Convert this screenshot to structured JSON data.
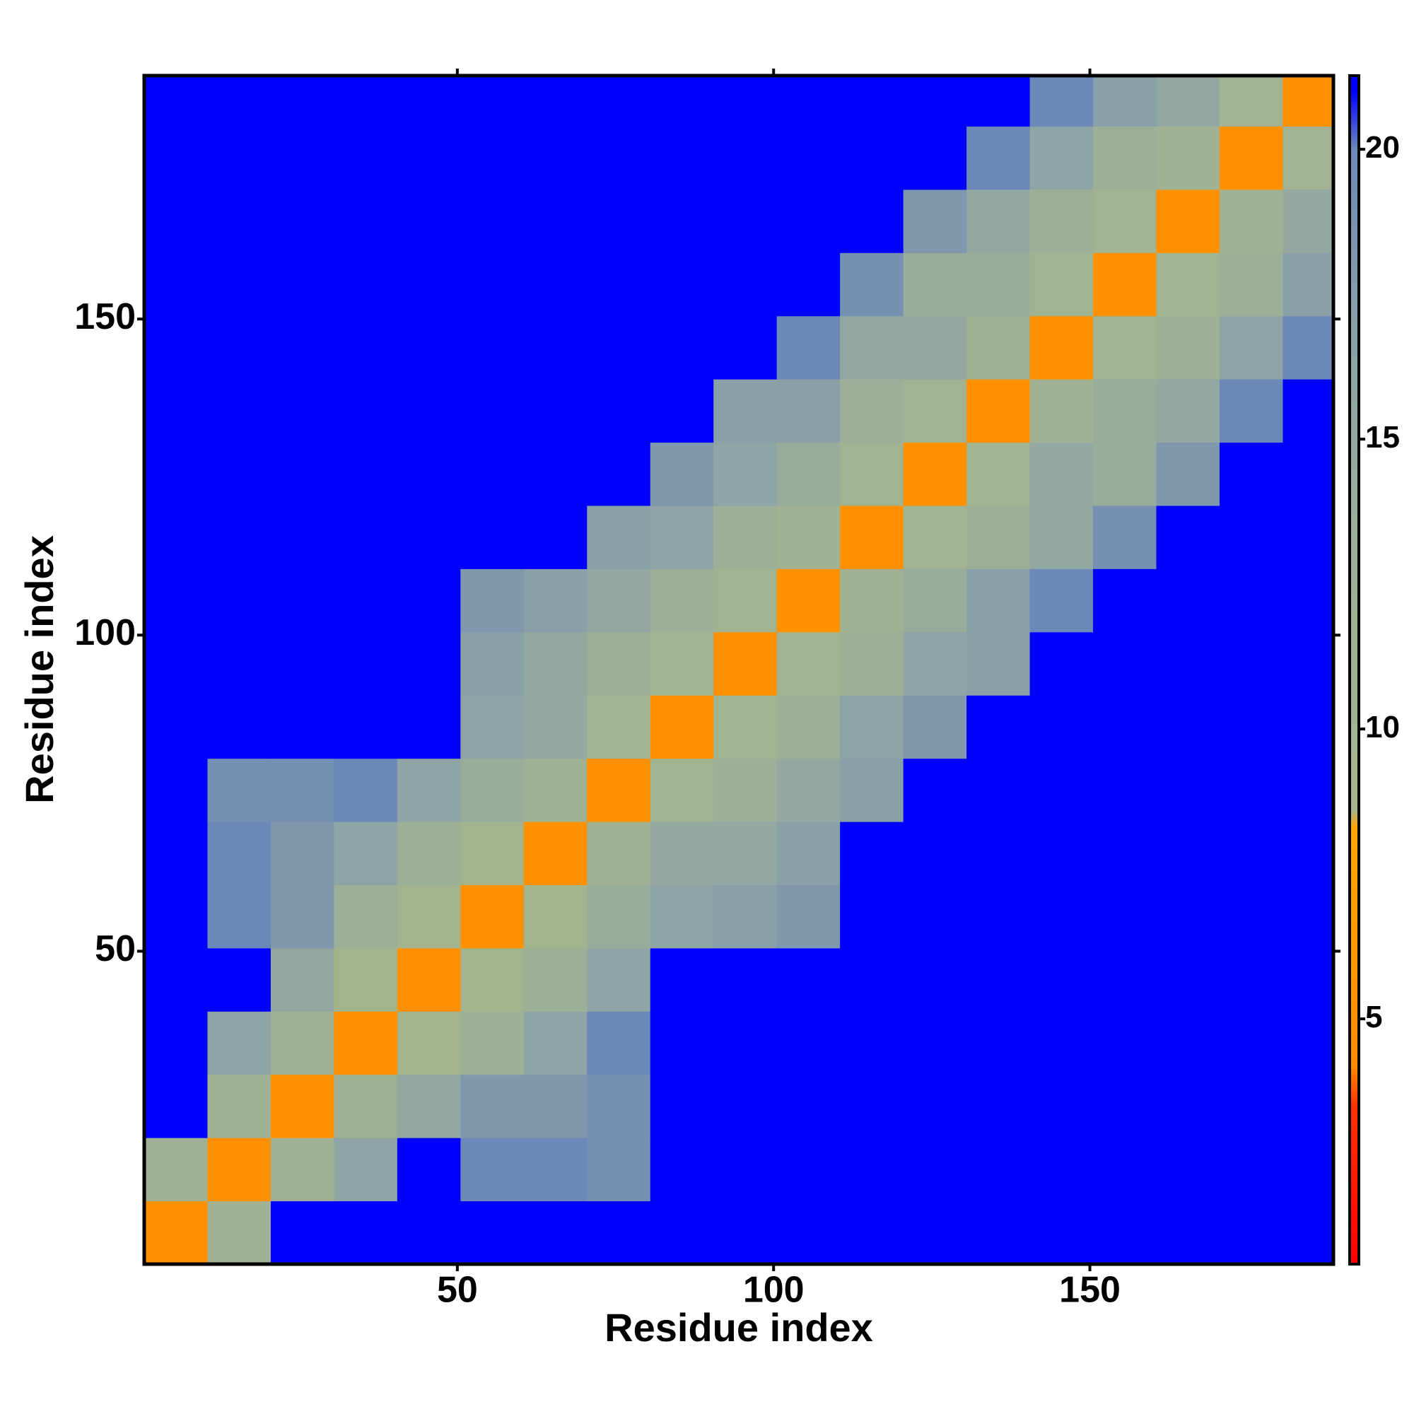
{
  "chart_data": {
    "type": "heatmap",
    "xlabel": "Residue index",
    "ylabel": "Residue index",
    "x_bins": [
      0.5,
      10.5,
      20.5,
      30.5,
      40.5,
      50.5,
      60.5,
      70.5,
      80.5,
      90.5,
      100.5,
      110.5,
      120.5,
      130.5,
      140.5,
      150.5,
      160.5,
      170.5,
      180.5,
      188.5
    ],
    "y_bins": [
      0.5,
      10.5,
      20.5,
      30.5,
      40.5,
      50.5,
      60.5,
      70.5,
      80.5,
      90.5,
      100.5,
      110.5,
      120.5,
      130.5,
      140.5,
      150.5,
      160.5,
      170.5,
      180.5,
      188.5
    ],
    "values": [
      [
        5,
        11,
        21,
        21,
        21,
        21,
        21,
        21,
        21,
        21,
        21,
        21,
        21,
        21,
        21,
        21,
        21,
        21,
        21
      ],
      [
        11,
        5,
        11,
        16,
        21,
        20,
        20,
        19,
        21,
        21,
        21,
        21,
        21,
        21,
        21,
        21,
        21,
        21,
        21
      ],
      [
        21,
        11,
        5,
        12,
        15,
        18,
        18,
        19,
        21,
        21,
        21,
        21,
        21,
        21,
        21,
        21,
        21,
        21,
        21
      ],
      [
        21,
        16,
        12,
        5,
        9,
        13,
        16,
        20,
        21,
        21,
        21,
        21,
        21,
        21,
        21,
        21,
        21,
        21,
        21
      ],
      [
        21,
        21,
        15,
        9,
        5,
        9,
        13,
        16,
        21,
        21,
        21,
        21,
        21,
        21,
        21,
        21,
        21,
        21,
        21
      ],
      [
        21,
        20,
        18,
        13,
        9,
        5,
        9,
        14,
        16,
        17,
        18,
        21,
        21,
        21,
        21,
        21,
        21,
        21,
        21
      ],
      [
        21,
        20,
        18,
        16,
        13,
        9,
        5,
        11,
        15,
        15,
        17,
        21,
        21,
        21,
        21,
        21,
        21,
        21,
        21
      ],
      [
        21,
        19,
        19,
        20,
        16,
        14,
        11,
        5,
        10,
        13,
        15,
        17,
        21,
        21,
        21,
        21,
        21,
        21,
        21
      ],
      [
        21,
        21,
        21,
        21,
        21,
        16,
        15,
        10,
        5,
        10,
        13,
        16,
        18,
        21,
        21,
        21,
        21,
        21,
        21
      ],
      [
        21,
        21,
        21,
        21,
        21,
        17,
        15,
        13,
        10,
        5,
        10,
        13,
        16,
        17,
        21,
        21,
        21,
        21,
        21
      ],
      [
        21,
        21,
        21,
        21,
        21,
        18,
        17,
        15,
        13,
        10,
        5,
        11,
        14,
        17,
        20,
        21,
        21,
        21,
        21
      ],
      [
        21,
        21,
        21,
        21,
        21,
        21,
        21,
        17,
        16,
        13,
        11,
        5,
        10,
        13,
        15,
        19,
        21,
        21,
        21
      ],
      [
        21,
        21,
        21,
        21,
        21,
        21,
        21,
        21,
        18,
        16,
        14,
        10,
        5,
        10,
        15,
        14,
        18,
        21,
        21
      ],
      [
        21,
        21,
        21,
        21,
        21,
        21,
        21,
        21,
        21,
        17,
        17,
        13,
        10,
        5,
        11,
        14,
        15,
        20,
        21
      ],
      [
        21,
        21,
        21,
        21,
        21,
        21,
        21,
        21,
        21,
        21,
        20,
        15,
        15,
        11,
        5,
        10,
        13,
        16,
        20
      ],
      [
        21,
        21,
        21,
        21,
        21,
        21,
        21,
        21,
        21,
        21,
        21,
        19,
        14,
        14,
        10,
        5,
        10,
        13,
        17
      ],
      [
        21,
        21,
        21,
        21,
        21,
        21,
        21,
        21,
        21,
        21,
        21,
        21,
        18,
        15,
        13,
        10,
        5,
        11,
        15
      ],
      [
        21,
        21,
        21,
        21,
        21,
        21,
        21,
        21,
        21,
        21,
        21,
        21,
        21,
        20,
        16,
        13,
        11,
        5,
        10
      ],
      [
        21,
        21,
        21,
        21,
        21,
        21,
        21,
        21,
        21,
        21,
        21,
        21,
        21,
        21,
        20,
        17,
        15,
        10,
        5
      ]
    ],
    "xlim": [
      0.5,
      188.5
    ],
    "ylim": [
      0.5,
      188.5
    ],
    "xticks": [
      50,
      100,
      150
    ],
    "yticks": [
      50,
      100,
      150
    ],
    "zlim": [
      0.77,
      21.27
    ],
    "zticks": [
      5,
      10,
      15,
      20
    ],
    "colorscale": [
      {
        "value": 0.77,
        "color": "#ff0000"
      },
      {
        "value": 3.5,
        "color": "#ff3000"
      },
      {
        "value": 4.2,
        "color": "#ff8c00"
      },
      {
        "value": 8.3,
        "color": "#ffa500"
      },
      {
        "value": 8.6,
        "color": "#a4b48c"
      },
      {
        "value": 13,
        "color": "#9cb098"
      },
      {
        "value": 17,
        "color": "#8aa0a8"
      },
      {
        "value": 20,
        "color": "#6c88b8"
      },
      {
        "value": 21,
        "color": "#0000ff"
      },
      {
        "value": 21.27,
        "color": "#0000ff"
      }
    ]
  }
}
